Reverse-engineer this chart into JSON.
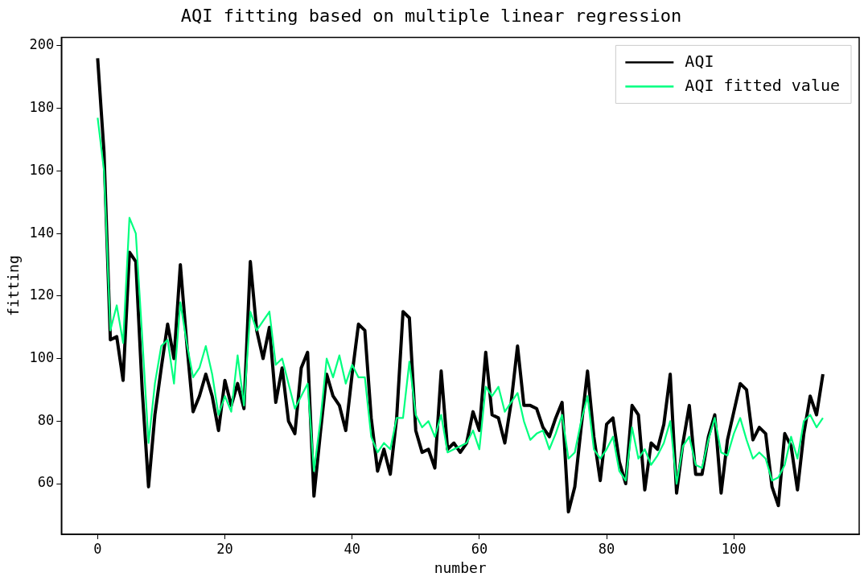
{
  "chart_data": {
    "type": "line",
    "title": "AQI fitting based on multiple linear regression",
    "xlabel": "number",
    "ylabel": "fitting",
    "x": [
      0,
      1,
      2,
      3,
      4,
      5,
      6,
      7,
      8,
      9,
      10,
      11,
      12,
      13,
      14,
      15,
      16,
      17,
      18,
      19,
      20,
      21,
      22,
      23,
      24,
      25,
      26,
      27,
      28,
      29,
      30,
      31,
      32,
      33,
      34,
      35,
      36,
      37,
      38,
      39,
      40,
      41,
      42,
      43,
      44,
      45,
      46,
      47,
      48,
      49,
      50,
      51,
      52,
      53,
      54,
      55,
      56,
      57,
      58,
      59,
      60,
      61,
      62,
      63,
      64,
      65,
      66,
      67,
      68,
      69,
      70,
      71,
      72,
      73,
      74,
      75,
      76,
      77,
      78,
      79,
      80,
      81,
      82,
      83,
      84,
      85,
      86,
      87,
      88,
      89,
      90,
      91,
      92,
      93,
      94,
      95,
      96,
      97,
      98,
      99,
      100,
      101,
      102,
      103,
      104,
      105,
      106,
      107,
      108,
      109,
      110,
      111,
      112,
      113,
      114
    ],
    "series": [
      {
        "name": "AQI",
        "color": "#000000",
        "values": [
          196,
          166,
          106,
          107,
          93,
          134,
          131,
          90,
          59,
          82,
          97,
          111,
          100,
          130,
          105,
          83,
          88,
          95,
          88,
          77,
          93,
          85,
          92,
          84,
          131,
          109,
          100,
          110,
          86,
          97,
          80,
          76,
          97,
          102,
          56,
          76,
          95,
          88,
          85,
          77,
          95,
          111,
          109,
          81,
          64,
          71,
          63,
          81,
          115,
          113,
          77,
          70,
          71,
          65,
          96,
          71,
          73,
          70,
          73,
          83,
          77,
          102,
          82,
          81,
          73,
          86,
          104,
          85,
          85,
          84,
          78,
          75,
          81,
          86,
          51,
          59,
          78,
          96,
          75,
          61,
          79,
          81,
          67,
          60,
          85,
          82,
          58,
          73,
          71,
          79,
          95,
          57,
          73,
          85,
          63,
          63,
          75,
          82,
          57,
          74,
          83,
          92,
          90,
          74,
          78,
          76,
          59,
          53,
          76,
          72,
          58,
          76,
          88,
          82,
          95
        ]
      },
      {
        "name": "AQI fitted value",
        "color": "#00ff7f",
        "values": [
          177,
          160,
          109,
          117,
          105,
          145,
          140,
          107,
          73,
          92,
          104,
          106,
          92,
          118,
          105,
          94,
          97,
          104,
          95,
          82,
          88,
          83,
          101,
          85,
          115,
          109,
          112,
          115,
          98,
          100,
          92,
          84,
          88,
          92,
          64,
          80,
          100,
          94,
          101,
          92,
          98,
          94,
          94,
          75,
          70,
          73,
          71,
          81,
          81,
          99,
          82,
          78,
          80,
          75,
          82,
          70,
          71,
          72,
          73,
          77,
          71,
          91,
          88,
          91,
          83,
          86,
          89,
          80,
          74,
          76,
          77,
          71,
          76,
          82,
          68,
          70,
          80,
          88,
          71,
          68,
          71,
          75,
          64,
          61,
          78,
          68,
          71,
          66,
          69,
          73,
          80,
          60,
          72,
          75,
          66,
          65,
          74,
          81,
          70,
          69,
          76,
          81,
          74,
          68,
          70,
          68,
          61,
          62,
          66,
          75,
          68,
          80,
          82,
          78,
          81
        ]
      }
    ],
    "xlim": [
      -5.7,
      119.7
    ],
    "xticks": [
      0,
      20,
      40,
      60,
      80,
      100
    ],
    "ylim": [
      43.8,
      202.7
    ],
    "yticks": [
      60,
      80,
      100,
      120,
      140,
      160,
      180,
      200
    ],
    "legend": "top right",
    "line_style": "solid"
  }
}
